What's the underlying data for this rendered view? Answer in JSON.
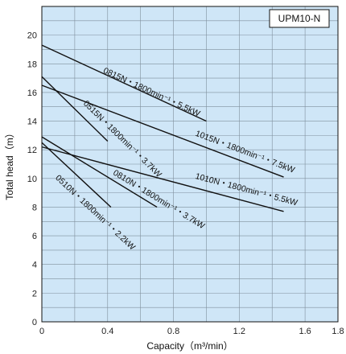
{
  "chart_data": {
    "type": "line",
    "model_label": "UPM10-N",
    "xlabel": "Capacity（m³/min）",
    "ylabel": "Total head（m）",
    "xlim": [
      0,
      1.8
    ],
    "ylim": [
      0,
      22
    ],
    "x_ticks": [
      "0",
      "0.4",
      "0.8",
      "1.2",
      "1.6",
      "1.8"
    ],
    "x_tick_values": [
      0,
      0.4,
      0.8,
      1.2,
      1.6,
      1.8
    ],
    "y_ticks": [
      "0",
      "2",
      "4",
      "6",
      "8",
      "10",
      "12",
      "14",
      "16",
      "18",
      "20"
    ],
    "y_tick_values": [
      0,
      2,
      4,
      6,
      8,
      10,
      12,
      14,
      16,
      18,
      20
    ],
    "grid": true,
    "background": "#cfe6f7",
    "line_color": "#111111",
    "series": [
      {
        "name": "0815N・1800min⁻¹・5.5kW",
        "x": [
          0,
          1.0
        ],
        "y": [
          19.3,
          14.0
        ]
      },
      {
        "name": "0515N・1800min⁻¹・3.7kW",
        "x": [
          0,
          0.4
        ],
        "y": [
          17.1,
          12.6
        ]
      },
      {
        "name": "1015N・1800min⁻¹・7.5kW",
        "x": [
          0,
          1.47
        ],
        "y": [
          16.5,
          10.1
        ]
      },
      {
        "name": "0810N・1800min⁻¹・3.7kW",
        "x": [
          0,
          0.7
        ],
        "y": [
          12.9,
          8.0
        ]
      },
      {
        "name": "0510N・1800min⁻¹・2.2kW",
        "x": [
          0,
          0.42
        ],
        "y": [
          12.5,
          8.0
        ]
      },
      {
        "name": "1010N・1800min⁻¹・5.5kW",
        "x": [
          0,
          1.47
        ],
        "y": [
          12.2,
          7.7
        ]
      }
    ]
  }
}
